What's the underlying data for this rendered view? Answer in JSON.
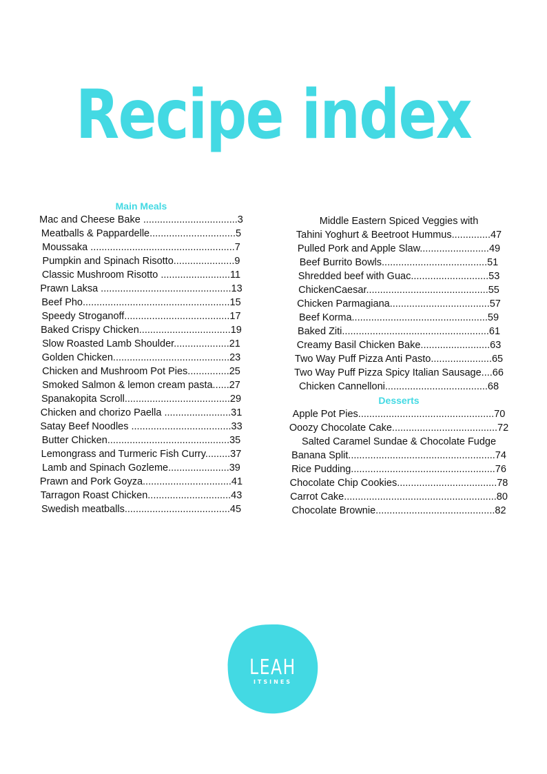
{
  "title": "Recipe index",
  "colors": {
    "accent": "#43d9e3",
    "text": "#111111",
    "background": "#ffffff"
  },
  "left_column": {
    "heading": "Main Meals",
    "entries": [
      "Mac and Cheese Bake ..................................3",
      "Meatballs & Pappardelle...............................5",
      "Moussaka ....................................................7",
      "Pumpkin and Spinach Risotto......................9",
      "Classic Mushroom Risotto .........................11",
      "Prawn Laksa ...............................................13",
      "Beef Pho.....................................................15",
      "Speedy Stroganoff......................................17",
      "Baked Crispy Chicken.................................19",
      "Slow Roasted Lamb Shoulder....................21",
      "Golden Chicken..........................................23",
      "Chicken and Mushroom Pot Pies...............25",
      "Smoked Salmon & lemon cream pasta......27",
      "Spanakopita Scroll......................................29",
      "Chicken and chorizo Paella ........................31",
      "Satay Beef Noodles ....................................33",
      "Butter Chicken............................................35",
      "Lemongrass and Turmeric Fish Curry.........37",
      "Lamb and Spinach Gozleme......................39",
      "Prawn and Pork Goyza................................41",
      "Tarragon Roast Chicken..............................43",
      "Swedish meatballs......................................45"
    ]
  },
  "right_column": {
    "entries": [
      "Middle Eastern Spiced Veggies with",
      "Tahini Yoghurt & Beetroot Hummus..............47",
      "Pulled Pork and Apple Slaw.........................49",
      "Beef Burrito Bowls......................................51",
      "Shredded beef with Guac............................53",
      "ChickenCaesar............................................55",
      "Chicken Parmagiana....................................57",
      "Beef Korma.................................................59",
      "Baked Ziti.....................................................61",
      "Creamy Basil Chicken Bake.........................63",
      "Two Way Puff Pizza Anti Pasto......................65",
      "Two Way Puff Pizza Spicy Italian Sausage....66",
      "Chicken Cannelloni.....................................68"
    ],
    "heading": "Desserts",
    "dessert_entries": [
      "Apple Pot Pies.................................................70",
      "Ooozy Chocolate Cake......................................72",
      "Salted Caramel Sundae & Chocolate Fudge",
      "Banana Split.....................................................74",
      "Rice Pudding....................................................76",
      "Chocolate Chip Cookies....................................78",
      "Carrot Cake.......................................................80",
      "Chocolate Brownie...........................................82"
    ]
  },
  "logo": {
    "name": "LEAH",
    "subname": "ITSINES"
  }
}
